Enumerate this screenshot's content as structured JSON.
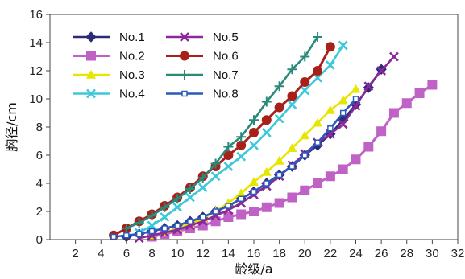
{
  "chart_data": {
    "type": "line",
    "xlabel": "龄级/a",
    "ylabel": "胸径/cm",
    "xlim": [
      0,
      32
    ],
    "ylim": [
      0,
      16
    ],
    "xticks": [
      2,
      4,
      6,
      8,
      10,
      12,
      14,
      16,
      18,
      20,
      22,
      24,
      26,
      28,
      30,
      32
    ],
    "yticks": [
      0,
      2,
      4,
      6,
      8,
      10,
      12,
      14,
      16
    ],
    "grid": false,
    "legend_position": "top-left",
    "series": [
      {
        "name": "No.1",
        "color": "#2b2b7a",
        "marker": "diamond",
        "x": [
          6,
          7,
          8,
          9,
          10,
          11,
          12,
          13,
          14,
          15,
          16,
          17,
          18,
          19,
          20,
          21,
          22,
          23,
          24,
          25,
          26
        ],
        "y": [
          0.2,
          0.4,
          0.6,
          0.8,
          1.0,
          1.3,
          1.6,
          2.0,
          2.4,
          2.9,
          3.4,
          4.0,
          4.6,
          5.2,
          6.0,
          6.7,
          7.5,
          8.5,
          9.6,
          10.8,
          12.1
        ]
      },
      {
        "name": "No.2",
        "color": "#c061c6",
        "marker": "square",
        "x": [
          8,
          9,
          10,
          11,
          12,
          13,
          14,
          15,
          16,
          17,
          18,
          19,
          20,
          21,
          22,
          23,
          24,
          25,
          26,
          27,
          28,
          29,
          30
        ],
        "y": [
          0.2,
          0.4,
          0.6,
          0.8,
          1.0,
          1.3,
          1.6,
          1.8,
          2.0,
          2.3,
          2.6,
          3.0,
          3.5,
          4.0,
          4.5,
          5.0,
          5.7,
          6.6,
          7.7,
          9.0,
          9.7,
          10.4,
          11.0
        ]
      },
      {
        "name": "No.3",
        "color": "#e6e600",
        "marker": "triangle",
        "x": [
          8,
          9,
          10,
          11,
          12,
          13,
          14,
          15,
          16,
          17,
          18,
          19,
          20,
          21,
          22,
          23,
          24
        ],
        "y": [
          0.3,
          0.5,
          0.8,
          1.1,
          1.5,
          2.0,
          2.6,
          3.3,
          4.1,
          4.8,
          5.6,
          6.5,
          7.4,
          8.3,
          9.2,
          9.9,
          10.7
        ]
      },
      {
        "name": "No.4",
        "color": "#3cc8d8",
        "marker": "x",
        "x": [
          7,
          8,
          9,
          10,
          11,
          12,
          13,
          14,
          15,
          16,
          17,
          18,
          19,
          20,
          21,
          22,
          23
        ],
        "y": [
          0.5,
          1.0,
          1.6,
          2.3,
          3.0,
          3.7,
          4.5,
          5.2,
          5.9,
          6.7,
          7.6,
          8.6,
          9.6,
          10.6,
          11.5,
          12.4,
          13.8
        ]
      },
      {
        "name": "No.5",
        "color": "#8a2a9a",
        "marker": "x",
        "x": [
          7,
          8,
          9,
          10,
          11,
          12,
          13,
          14,
          15,
          16,
          17,
          18,
          19,
          20,
          21,
          22,
          23,
          24,
          25,
          26,
          27
        ],
        "y": [
          0.1,
          0.3,
          0.5,
          0.7,
          1.0,
          1.3,
          1.7,
          2.1,
          2.6,
          3.2,
          3.8,
          4.5,
          5.3,
          6.1,
          6.9,
          7.5,
          8.2,
          9.5,
          10.9,
          12.0,
          13.0
        ]
      },
      {
        "name": "No.6",
        "color": "#a8201a",
        "marker": "circle",
        "x": [
          5,
          6,
          7,
          8,
          9,
          10,
          11,
          12,
          13,
          14,
          15,
          16,
          17,
          18,
          19,
          20,
          21,
          22
        ],
        "y": [
          0.3,
          0.8,
          1.3,
          1.8,
          2.4,
          3.0,
          3.7,
          4.5,
          5.2,
          6.0,
          6.7,
          7.6,
          8.5,
          9.4,
          10.2,
          11.2,
          12.0,
          13.7
        ]
      },
      {
        "name": "No.7",
        "color": "#2a8a7a",
        "marker": "plus",
        "x": [
          6,
          7,
          8,
          9,
          10,
          11,
          12,
          13,
          14,
          15,
          16,
          17,
          18,
          19,
          20,
          21
        ],
        "y": [
          0.8,
          1.2,
          1.7,
          2.3,
          2.9,
          3.6,
          4.4,
          5.4,
          6.6,
          7.3,
          8.5,
          9.8,
          10.9,
          12.1,
          13.0,
          14.4
        ]
      },
      {
        "name": "No.8",
        "color": "#2a5ab8",
        "marker": "square-open",
        "x": [
          5,
          6,
          7,
          8,
          9,
          10,
          11,
          12,
          13,
          14,
          15,
          16,
          17,
          18,
          19,
          20,
          21,
          22,
          23,
          24
        ],
        "y": [
          0.2,
          0.3,
          0.4,
          0.6,
          0.8,
          1.0,
          1.3,
          1.6,
          2.0,
          2.4,
          2.9,
          3.4,
          4.0,
          4.6,
          5.2,
          6.0,
          6.9,
          7.9,
          9.0,
          10.0
        ]
      }
    ]
  }
}
